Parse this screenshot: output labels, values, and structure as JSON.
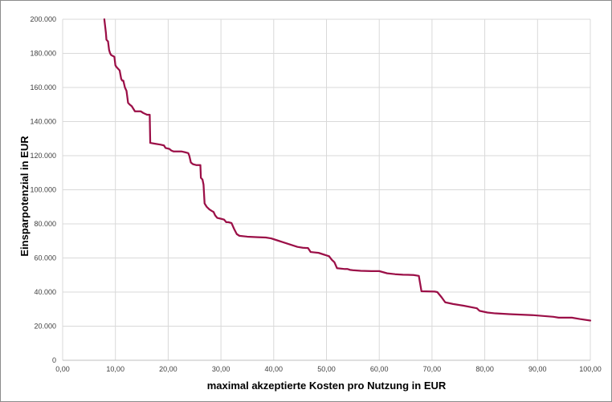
{
  "chart_data": {
    "type": "line",
    "title": "",
    "xlabel": "maximal akzeptierte Kosten pro Nutzung in EUR",
    "ylabel": "Einsparpotenzial in EUR",
    "xlim": [
      0,
      100
    ],
    "ylim": [
      0,
      200000
    ],
    "x_ticks": [
      "0,00",
      "10,00",
      "20,00",
      "30,00",
      "40,00",
      "50,00",
      "60,00",
      "70,00",
      "80,00",
      "90,00",
      "100,00"
    ],
    "y_ticks": [
      "0",
      "20.000",
      "40.000",
      "60.000",
      "80.000",
      "100.000",
      "120.000",
      "140.000",
      "160.000",
      "180.000",
      "200.000"
    ],
    "grid": true,
    "legend": "none",
    "line_color": "#9b0f47",
    "gridline_color": "#d9d9d9",
    "series": [
      {
        "x": [
          7.9,
          8.2,
          8.3,
          8.6,
          8.8,
          9.0,
          9.2,
          9.8,
          10.0,
          10.2,
          10.5,
          10.8,
          11.1,
          11.3,
          11.5,
          11.8,
          12.1,
          12.4,
          12.7,
          13.1,
          13.7,
          14.0,
          14.8,
          15.3,
          16.0,
          16.5,
          16.6,
          17.5,
          18.5,
          19.2,
          19.5,
          20.2,
          20.6,
          21.0,
          22.5,
          23.2,
          23.8,
          24.0,
          24.3,
          24.7,
          25.3,
          26.1,
          26.2,
          26.5,
          26.7,
          26.9,
          27.3,
          27.8,
          28.3,
          28.6,
          28.9,
          29.3,
          30.0,
          30.6,
          31.0,
          31.4,
          32.0,
          32.5,
          33.0,
          33.5,
          35.0,
          37.0,
          38.5,
          39.5,
          40.0,
          41.0,
          41.5,
          42.5,
          43.5,
          44.5,
          45.5,
          46.5,
          47.0,
          48.5,
          49.5,
          50.0,
          50.5,
          51.0,
          51.5,
          52.0,
          53.5,
          54.0,
          54.5,
          55.0,
          56.5,
          58.5,
          60.0,
          61.5,
          63.0,
          64.5,
          66.5,
          67.5,
          68.0,
          70.5,
          71.0,
          71.8,
          72.5,
          74.0,
          76.0,
          78.5,
          79.0,
          80.5,
          82.0,
          85.0,
          89.0,
          93.0,
          94.0,
          96.5,
          98.0,
          100.0
        ],
        "y": [
          200000,
          192000,
          188000,
          187000,
          182000,
          180000,
          179000,
          178000,
          173000,
          172000,
          171000,
          170000,
          165000,
          164000,
          164000,
          160000,
          158000,
          151000,
          150000,
          149000,
          146000,
          146000,
          146000,
          145000,
          144000,
          144000,
          127500,
          127000,
          126500,
          126000,
          124500,
          124000,
          123000,
          122500,
          122500,
          122000,
          121500,
          120000,
          116000,
          115000,
          114500,
          114500,
          107000,
          106000,
          103000,
          92000,
          90000,
          88500,
          87500,
          87000,
          85000,
          83500,
          83000,
          82500,
          81000,
          81000,
          80500,
          77000,
          74000,
          73000,
          72500,
          72200,
          72000,
          71500,
          71000,
          70000,
          69500,
          68500,
          67500,
          66500,
          66000,
          65800,
          63500,
          63000,
          62000,
          61500,
          61000,
          59000,
          57500,
          54000,
          53500,
          53500,
          53000,
          52800,
          52500,
          52300,
          52300,
          51000,
          50500,
          50200,
          50000,
          49500,
          40500,
          40300,
          40000,
          37000,
          34000,
          33000,
          32000,
          30500,
          29000,
          28000,
          27500,
          27000,
          26500,
          25500,
          25000,
          25000,
          24200,
          23300
        ]
      }
    ]
  }
}
